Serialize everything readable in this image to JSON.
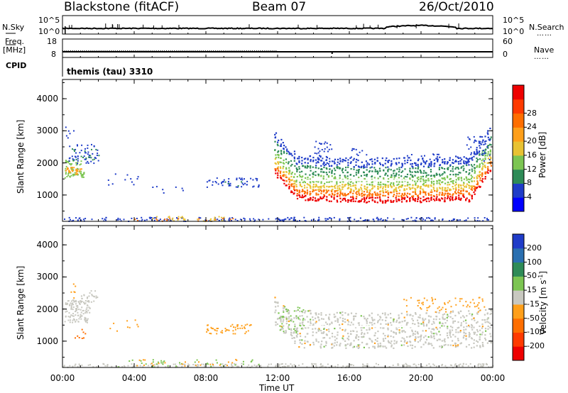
{
  "header": {
    "station": "Blackstone (fitACF)",
    "beam": "Beam 07",
    "date": "26/Oct/2010"
  },
  "left_labels": {
    "nsky": "N.Sky",
    "freq": "Freq.",
    "mhz": "[MHz]",
    "cpid": "CPID"
  },
  "right_labels": {
    "nsearch": "N.Search",
    "nave": "Nave",
    "dots": "……"
  },
  "cpid_text": "themis (tau) 3310",
  "noise_ticks": {
    "left": [
      "10^5",
      "10^0"
    ],
    "right": [
      "10^5",
      "10^0"
    ]
  },
  "freq_ticks": {
    "left": [
      "18",
      "8"
    ],
    "right": [
      "60",
      "0"
    ]
  },
  "colors": {
    "power": [
      "#0000ff",
      "#1f3cc8",
      "#2e8b57",
      "#7cc552",
      "#e8c233",
      "#ff9f1a",
      "#ff6e00",
      "#ff3a00",
      "#ee0000"
    ],
    "velocity": [
      "#1f3cc8",
      "#2a6fb0",
      "#2e8b57",
      "#7cc552",
      "#c8c8c0",
      "#ff9f1a",
      "#ff6e00",
      "#ff3a00",
      "#ee0000"
    ],
    "gs_grey": "#c8c8c0"
  },
  "chart_data": [
    {
      "type": "line",
      "title": "N.Sky / N.Search",
      "y_scale": "log",
      "ylim": [
        "10^0",
        "10^5"
      ],
      "x": [
        "00:00",
        "04:00",
        "08:00",
        "12:00",
        "16:00",
        "20:00",
        "00:00"
      ],
      "series": [
        {
          "name": "N.Sky",
          "values": [
            "10^1.5",
            "10^1.5",
            "10^1.6",
            "10^1.5",
            "10^1.6",
            "10^1.9",
            "10^1.7"
          ]
        }
      ]
    },
    {
      "type": "line",
      "title": "Freq. [MHz] / Nave",
      "ylim_left": [
        8,
        18
      ],
      "ylim_right": [
        0,
        60
      ],
      "x": [
        "00:00",
        "04:00",
        "08:00",
        "12:00",
        "16:00",
        "20:00",
        "00:00"
      ],
      "series": [
        {
          "name": "Freq.",
          "values": [
            10.9,
            10.9,
            10.9,
            10.9,
            10.9,
            10.9,
            10.9
          ]
        }
      ]
    },
    {
      "type": "heatmap",
      "ylabel": "Slant Range [km]",
      "ylim": [
        180,
        4600
      ],
      "yticks": [
        "1000",
        "2000",
        "3000",
        "4000"
      ],
      "colorbar_label": "Power [dB]",
      "colorbar_ticks": [
        "4",
        "8",
        "12",
        "16",
        "20",
        "24",
        "28"
      ],
      "range_limits": [
        0,
        32
      ],
      "xticks": [
        "00:00",
        "04:00",
        "08:00",
        "12:00",
        "16:00",
        "20:00",
        "00:00"
      ]
    },
    {
      "type": "heatmap",
      "ylabel": "Slant Range [km]",
      "ylim": [
        180,
        4600
      ],
      "yticks": [
        "1000",
        "2000",
        "3000",
        "4000"
      ],
      "colorbar_label": "Velocity [m s^-1]",
      "colorbar_ticks": [
        "200",
        "100",
        "50",
        "15",
        "-15",
        "-50",
        "-100",
        "-200"
      ],
      "xticks": [
        "00:00",
        "04:00",
        "08:00",
        "12:00",
        "16:00",
        "20:00",
        "00:00"
      ],
      "xlabel": "Time UT"
    }
  ]
}
